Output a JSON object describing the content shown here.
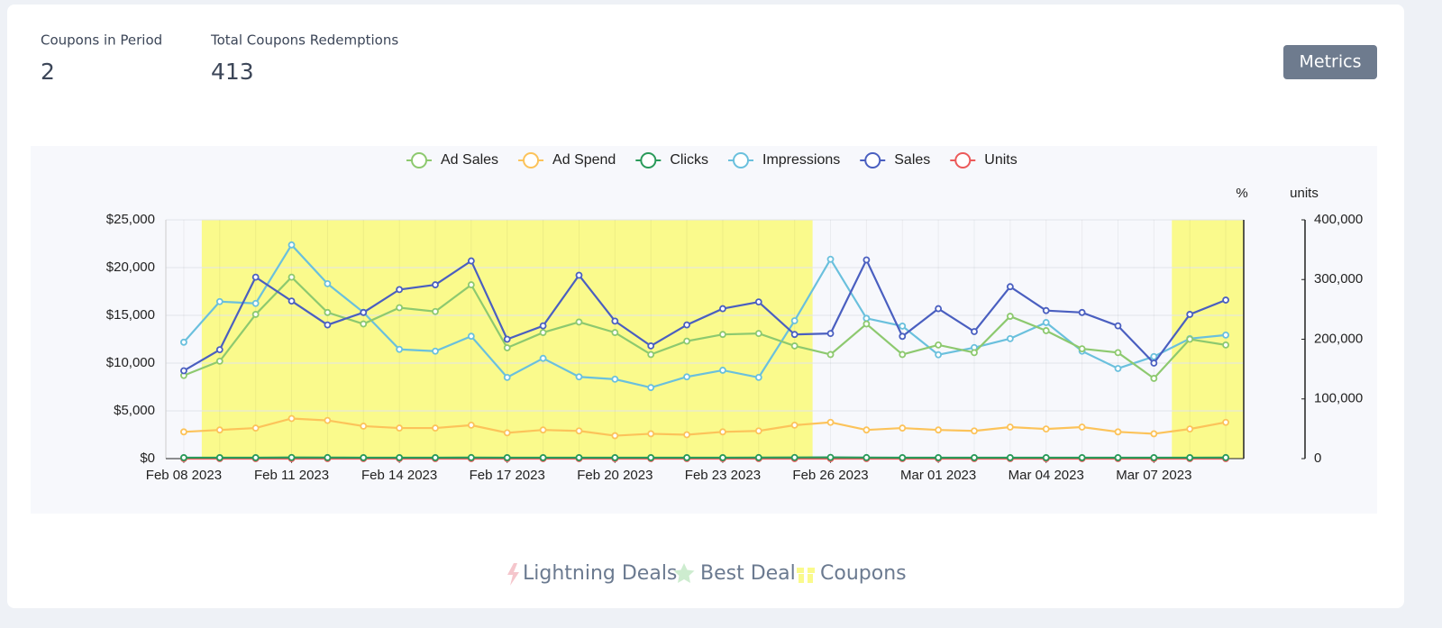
{
  "stats": [
    {
      "label": "Coupons in Period",
      "value": "2"
    },
    {
      "label": "Total Coupons Redemptions",
      "value": "413"
    }
  ],
  "button": "Metrics",
  "chart_data": {
    "type": "line",
    "categories": [
      "Feb 08 2023",
      null,
      null,
      "Feb 11 2023",
      null,
      null,
      "Feb 14 2023",
      null,
      null,
      "Feb 17 2023",
      null,
      null,
      "Feb 20 2023",
      null,
      null,
      "Feb 23 2023",
      null,
      null,
      "Feb 26 2023",
      null,
      null,
      "Mar 01 2023",
      null,
      null,
      "Mar 04 2023",
      null,
      null,
      "Mar 07 2023",
      null,
      null
    ],
    "ylim": [
      0,
      25000
    ],
    "yticks": [
      {
        "value": 0,
        "label": "$0"
      },
      {
        "value": 5000,
        "label": "$5,000"
      },
      {
        "value": 10000,
        "label": "$10,000"
      },
      {
        "value": 15000,
        "label": "$15,000"
      },
      {
        "value": 20000,
        "label": "$20,000"
      },
      {
        "value": 25000,
        "label": "$25,000"
      }
    ],
    "y2lim": [
      0,
      400000
    ],
    "y2ticks": [
      0,
      {
        "value": 100000,
        "label": "100,000"
      },
      {
        "value": 200000,
        "label": "200,000"
      },
      {
        "value": 300000,
        "label": "300,000"
      },
      {
        "value": 400000,
        "label": "400,000"
      }
    ],
    "y2_label": "units",
    "y3_label": "%",
    "grid": true,
    "coupon_ranges": [
      [
        0.5,
        17.5
      ],
      [
        27.5,
        29.5
      ]
    ],
    "coupon_color": "#fafa8c",
    "series": [
      {
        "name": "Ad Sales",
        "color": "#8dc96f",
        "values": [
          8700,
          10200,
          15100,
          19000,
          15300,
          14100,
          15800,
          15400,
          18200,
          11600,
          13200,
          14300,
          13200,
          10900,
          12300,
          13000,
          13100,
          11800,
          10900,
          14100,
          10900,
          11900,
          11100,
          14900,
          13400,
          11500,
          11100,
          8400,
          12500,
          11900
        ]
      },
      {
        "name": "Ad Spend",
        "color": "#fcc35a",
        "values": [
          2800,
          3000,
          3200,
          4200,
          4000,
          3400,
          3200,
          3200,
          3500,
          2700,
          3000,
          2900,
          2400,
          2600,
          2500,
          2800,
          2900,
          3500,
          3800,
          3000,
          3200,
          3000,
          2900,
          3300,
          3100,
          3300,
          2800,
          2600,
          3100,
          3800
        ]
      },
      {
        "name": "Clicks",
        "color": "#2a9a5a",
        "values": [
          100,
          100,
          100,
          120,
          110,
          100,
          100,
          100,
          110,
          100,
          100,
          100,
          100,
          100,
          100,
          100,
          110,
          120,
          130,
          110,
          100,
          100,
          100,
          100,
          100,
          100,
          100,
          100,
          100,
          110
        ]
      },
      {
        "name": "Impressions",
        "color": "#6ac0dd",
        "axis": "y2",
        "values": [
          195000,
          263000,
          260000,
          358000,
          293000,
          245000,
          183000,
          180000,
          205000,
          136000,
          168000,
          137000,
          133000,
          119000,
          137000,
          148000,
          136000,
          231000,
          334000,
          235000,
          222000,
          174000,
          186000,
          201000,
          228000,
          180000,
          151000,
          171000,
          201000,
          207000
        ]
      },
      {
        "name": "Sales",
        "color": "#4a5fc0",
        "values": [
          9200,
          11400,
          19000,
          16500,
          14000,
          15300,
          17700,
          18200,
          20700,
          12500,
          13900,
          19200,
          14400,
          11800,
          14000,
          15700,
          16400,
          13000,
          13100,
          20800,
          12800,
          15700,
          13300,
          18000,
          15500,
          15300,
          13900,
          10000,
          15100,
          16600
        ]
      },
      {
        "name": "Units",
        "color": "#ec5a5a",
        "values": [
          0,
          0,
          0,
          0,
          0,
          0,
          0,
          0,
          0,
          0,
          0,
          0,
          0,
          0,
          0,
          0,
          0,
          0,
          0,
          0,
          0,
          0,
          0,
          0,
          0,
          0,
          0,
          0,
          0,
          0
        ]
      }
    ]
  },
  "footer_legend": [
    "Lightning Deals",
    "Best Deal",
    "Coupons"
  ]
}
